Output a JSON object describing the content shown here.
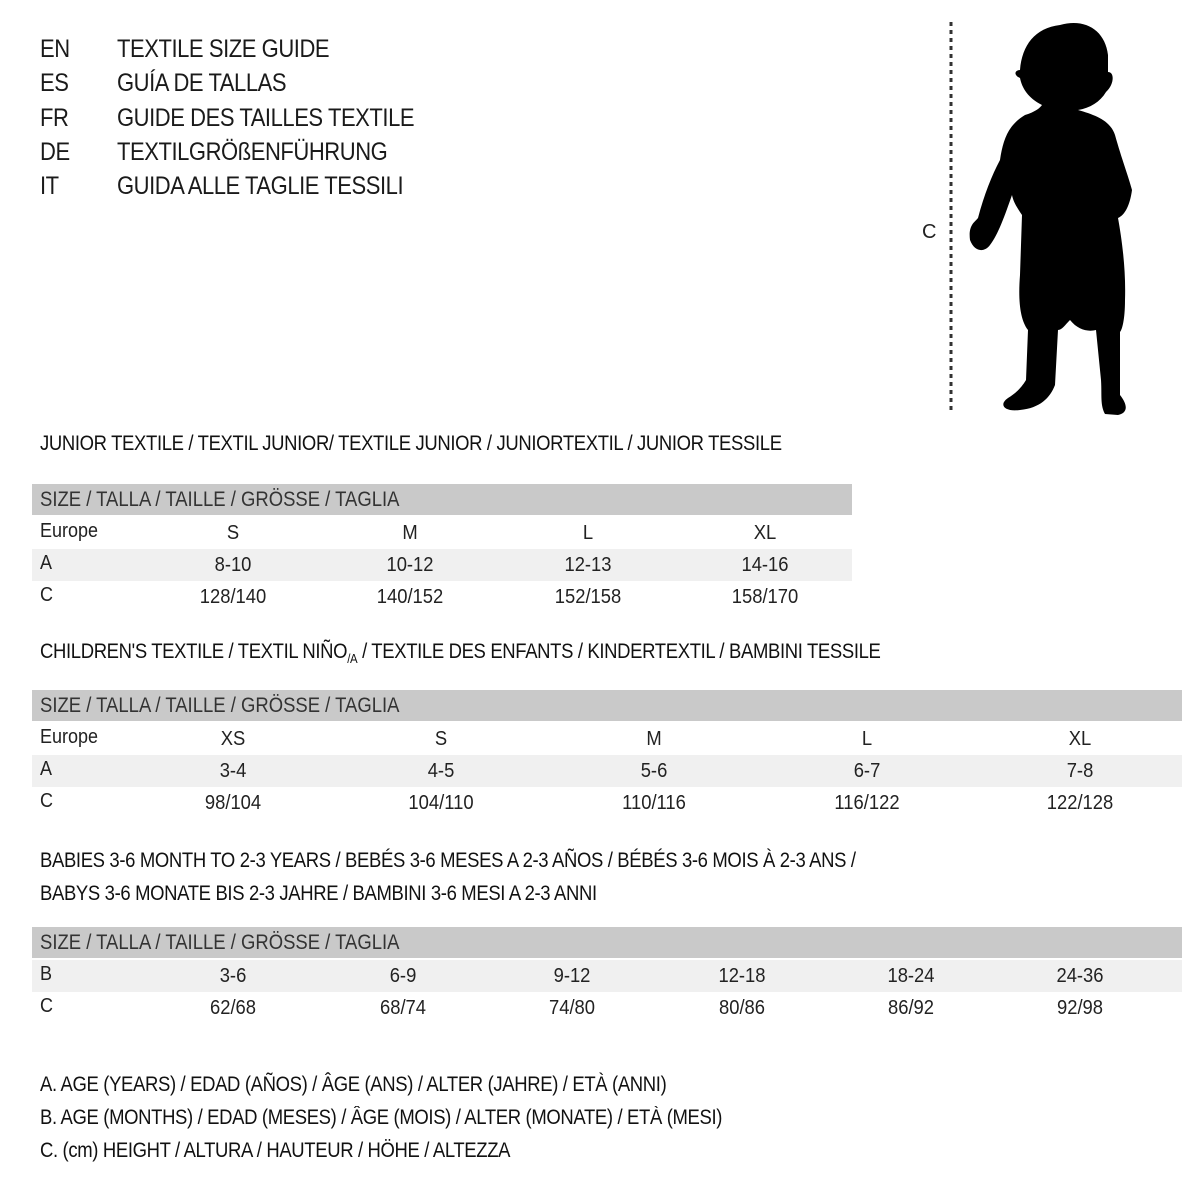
{
  "titles": [
    {
      "code": "EN",
      "text": "TEXTILE SIZE GUIDE"
    },
    {
      "code": "ES",
      "text": "GUÍA DE TALLAS"
    },
    {
      "code": "FR",
      "text": "GUIDE DES TAILLES TEXTILE"
    },
    {
      "code": "DE",
      "text": "TEXTILGRÖßENFÜHRUNG"
    },
    {
      "code": "IT",
      "text": "GUIDA ALLE TAGLIE TESSILI"
    }
  ],
  "figure": {
    "measure_label": "C"
  },
  "junior": {
    "heading": "JUNIOR TEXTILE / TEXTIL JUNIOR/ TEXTILE JUNIOR / JUNIORTEXTIL / JUNIOR TESSILE",
    "header": "SIZE / TALLA / TAILLE / GRÖSSE / TAGLIA",
    "rows": [
      {
        "label": "Europe",
        "cells": [
          "S",
          "M",
          "L",
          "XL"
        ]
      },
      {
        "label": "A",
        "cells": [
          "8-10",
          "10-12",
          "12-13",
          "14-16"
        ]
      },
      {
        "label": "C",
        "cells": [
          "128/140",
          "140/152",
          "152/158",
          "158/170"
        ]
      }
    ]
  },
  "children": {
    "heading_pre": "CHILDREN'S TEXTILE / TEXTIL NIÑO",
    "heading_sub": "/A",
    "heading_post": " / TEXTILE DES ENFANTS / KINDERTEXTIL / BAMBINI TESSILE",
    "header": "SIZE / TALLA / TAILLE / GRÖSSE / TAGLIA",
    "rows": [
      {
        "label": "Europe",
        "cells": [
          "XS",
          "S",
          "M",
          "L",
          "XL"
        ]
      },
      {
        "label": "A",
        "cells": [
          "3-4",
          "4-5",
          "5-6",
          "6-7",
          "7-8"
        ]
      },
      {
        "label": "C",
        "cells": [
          "98/104",
          "104/110",
          "110/116",
          "116/122",
          "122/128"
        ]
      }
    ]
  },
  "babies": {
    "heading_line1": "BABIES 3-6 MONTH TO 2-3 YEARS / BEBÉS 3-6 MESES A 2-3 AÑOS / BÉBÉS 3-6 MOIS À 2-3 ANS /",
    "heading_line2": "BABYS 3-6 MONATE BIS 2-3 JAHRE / BAMBINI 3-6 MESI A 2-3 ANNI",
    "header": "SIZE / TALLA / TAILLE / GRÖSSE / TAGLIA",
    "rows": [
      {
        "label": "B",
        "cells": [
          "3-6",
          "6-9",
          "9-12",
          "12-18",
          "18-24",
          "24-36"
        ]
      },
      {
        "label": "C",
        "cells": [
          "62/68",
          "68/74",
          "74/80",
          "80/86",
          "86/92",
          "92/98"
        ]
      }
    ]
  },
  "legend": [
    "A. AGE (YEARS) / EDAD (AÑOS) / ÂGE (ANS) / ALTER (JAHRE) / ETÀ (ANNI)",
    "B. AGE (MONTHS) / EDAD (MESES) / ÂGE (MOIS) / ALTER (MONATE) / ETÀ (MESI)",
    "C. (cm) HEIGHT / ALTURA / HAUTEUR / HÖHE / ALTEZZA"
  ],
  "colors": {
    "header_bg": "#c9c9c9",
    "shade_bg": "#f0f0f0"
  }
}
